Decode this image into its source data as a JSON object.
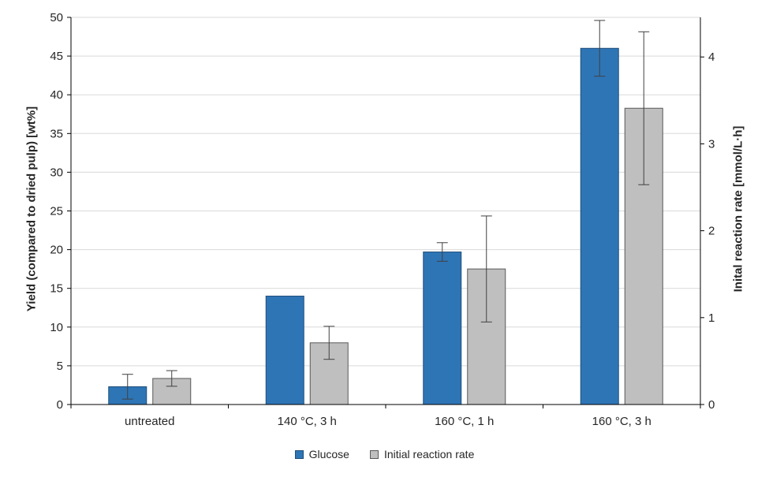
{
  "chart_data": {
    "type": "bar",
    "categories": [
      "untreated",
      "140 °C, 3 h",
      "160 °C, 1 h",
      "160 °C, 3 h"
    ],
    "series": [
      {
        "name": "Glucose",
        "axis": "left",
        "color": "#2E75B6",
        "border": "#1F4E79",
        "values": [
          2.3,
          14.0,
          19.7,
          46.0
        ],
        "errors": [
          1.6,
          0,
          1.2,
          3.6
        ]
      },
      {
        "name": "Initial reaction rate",
        "axis": "right",
        "color": "#BFBFBF",
        "border": "#595959",
        "values": [
          0.3,
          0.71,
          1.56,
          3.41
        ],
        "errors": [
          0.09,
          0.19,
          0.61,
          0.88
        ]
      }
    ],
    "left_axis": {
      "label": "Yield (compared to dried pulp) [wt%]",
      "min": 0,
      "max": 50,
      "tick_step": 5
    },
    "right_axis": {
      "label": "Inital reaction rate [mmol/L·h]",
      "min": 0,
      "max": 4.456,
      "ticks": [
        0,
        1,
        2,
        3,
        4
      ]
    },
    "legend": [
      "Glucose",
      "Initial reaction rate"
    ],
    "grid": true,
    "gridline_color": "#D9D9D9",
    "axis_color": "#000000",
    "error_bar_color": "#404040"
  }
}
